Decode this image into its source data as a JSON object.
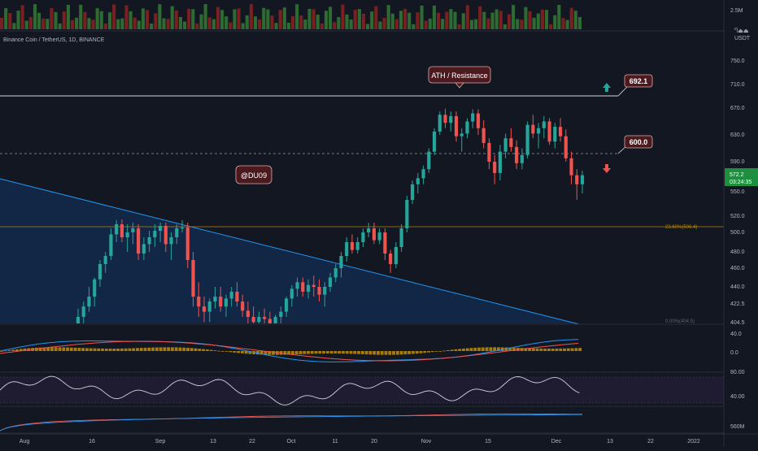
{
  "header": {
    "symbol_title": "Binance Coin / TetherUS, 1D, BINANCE",
    "currency": "USDT",
    "currency_extra": "Ⴄ⏏⏏"
  },
  "colors": {
    "background": "#131722",
    "up": "#26a69a",
    "down": "#ef5350",
    "trendline": "#2196f3",
    "fib": "#b8860b",
    "label_bg": "#4a1a1f",
    "last_price": "#1e8f3e",
    "rsi_band": "#2a1f3d"
  },
  "icons": [
    "arrow-up-icon",
    "arrow-down-icon"
  ],
  "annotations": {
    "ath_label": "ATH / Resistance",
    "author_label": "@DU09",
    "level_high": "692.1",
    "level_mid": "600.0",
    "fib_label": "23.60%(506.4)",
    "fib_label_low": "0.00%(404.5)"
  },
  "last_price": {
    "value": "572.2",
    "countdown": "03:24:35"
  },
  "volume_axis": {
    "label": "2.5M"
  },
  "price_axis": [
    "750.0",
    "710.0",
    "670.0",
    "630.0",
    "590.0",
    "550.0",
    "520.0",
    "500.0",
    "480.0",
    "460.0",
    "440.0",
    "422.5",
    "404.5"
  ],
  "macd_axis": [
    "40.0",
    "0.0"
  ],
  "rsi_axis": [
    "80.00",
    "40.00"
  ],
  "bottom_axis": [
    "560M"
  ],
  "time_axis": [
    "Aug",
    "16",
    "Sep",
    "13",
    "22",
    "Oct",
    "11",
    "20",
    "Nov",
    "15",
    "Dec",
    "13",
    "22",
    "2022"
  ],
  "chart_data": {
    "type": "candlestick",
    "title": "Binance Coin / TetherUS, 1D, BINANCE",
    "x": [
      "Aug",
      "16",
      "Sep",
      "13",
      "22",
      "Oct",
      "11",
      "20",
      "Nov",
      "15",
      "Dec",
      "13",
      "22",
      "2022"
    ],
    "y_unit": "USDT",
    "ylim": [
      400,
      770
    ],
    "horizontal_levels": [
      {
        "label": "692.1",
        "value": 692.1,
        "style": "solid"
      },
      {
        "label": "600.0",
        "value": 600.0,
        "style": "dashed"
      },
      {
        "label": "23.60%(506.4)",
        "value": 506.4,
        "style": "fib"
      }
    ],
    "annotations": [
      "ATH / Resistance",
      "@DU09"
    ],
    "ohlc": [
      [
        400,
        418,
        395,
        410
      ],
      [
        410,
        425,
        402,
        420
      ],
      [
        420,
        440,
        415,
        430
      ],
      [
        430,
        450,
        420,
        448
      ],
      [
        448,
        470,
        440,
        465
      ],
      [
        465,
        480,
        455,
        475
      ],
      [
        475,
        505,
        470,
        498
      ],
      [
        498,
        515,
        490,
        510
      ],
      [
        510,
        516,
        490,
        495
      ],
      [
        495,
        510,
        480,
        500
      ],
      [
        500,
        512,
        488,
        505
      ],
      [
        505,
        510,
        470,
        478
      ],
      [
        478,
        495,
        470,
        488
      ],
      [
        488,
        502,
        480,
        495
      ],
      [
        495,
        510,
        485,
        502
      ],
      [
        502,
        512,
        490,
        508
      ],
      [
        508,
        512,
        480,
        488
      ],
      [
        488,
        500,
        470,
        495
      ],
      [
        495,
        510,
        488,
        505
      ],
      [
        505,
        515,
        500,
        506
      ],
      [
        506,
        512,
        460,
        470
      ],
      [
        470,
        480,
        420,
        430
      ],
      [
        430,
        445,
        410,
        420
      ],
      [
        420,
        430,
        405,
        415
      ],
      [
        415,
        428,
        405,
        425
      ],
      [
        425,
        440,
        418,
        430
      ],
      [
        430,
        440,
        415,
        420
      ],
      [
        420,
        432,
        410,
        428
      ],
      [
        428,
        440,
        420,
        435
      ],
      [
        435,
        445,
        420,
        425
      ],
      [
        425,
        432,
        410,
        416
      ],
      [
        416,
        425,
        400,
        410
      ],
      [
        410,
        420,
        400,
        405
      ],
      [
        405,
        415,
        398,
        410
      ],
      [
        410,
        418,
        400,
        408
      ],
      [
        408,
        415,
        398,
        402
      ],
      [
        402,
        412,
        396,
        410
      ],
      [
        410,
        420,
        402,
        415
      ],
      [
        415,
        430,
        410,
        428
      ],
      [
        428,
        442,
        420,
        438
      ],
      [
        438,
        450,
        430,
        445
      ],
      [
        445,
        450,
        430,
        435
      ],
      [
        435,
        448,
        428,
        442
      ],
      [
        442,
        452,
        430,
        440
      ],
      [
        440,
        448,
        425,
        432
      ],
      [
        432,
        445,
        420,
        440
      ],
      [
        440,
        455,
        435,
        450
      ],
      [
        450,
        465,
        445,
        460
      ],
      [
        460,
        480,
        450,
        475
      ],
      [
        475,
        495,
        468,
        490
      ],
      [
        490,
        498,
        478,
        482
      ],
      [
        482,
        495,
        478,
        490
      ],
      [
        490,
        505,
        485,
        500
      ],
      [
        500,
        512,
        495,
        505
      ],
      [
        505,
        512,
        488,
        492
      ],
      [
        492,
        505,
        488,
        500
      ],
      [
        500,
        505,
        470,
        478
      ],
      [
        478,
        482,
        455,
        465
      ],
      [
        465,
        490,
        460,
        485
      ],
      [
        485,
        510,
        480,
        505
      ],
      [
        505,
        545,
        500,
        540
      ],
      [
        540,
        565,
        535,
        560
      ],
      [
        560,
        575,
        548,
        568
      ],
      [
        568,
        585,
        560,
        580
      ],
      [
        580,
        610,
        575,
        605
      ],
      [
        605,
        640,
        600,
        635
      ],
      [
        635,
        665,
        630,
        660
      ],
      [
        660,
        669,
        640,
        648
      ],
      [
        648,
        665,
        635,
        658
      ],
      [
        658,
        665,
        620,
        628
      ],
      [
        628,
        640,
        605,
        632
      ],
      [
        632,
        655,
        625,
        650
      ],
      [
        650,
        668,
        640,
        662
      ],
      [
        662,
        668,
        630,
        640
      ],
      [
        640,
        652,
        610,
        618
      ],
      [
        618,
        625,
        580,
        590
      ],
      [
        590,
        600,
        560,
        575
      ],
      [
        575,
        615,
        565,
        605
      ],
      [
        605,
        632,
        595,
        625
      ],
      [
        625,
        640,
        605,
        612
      ],
      [
        612,
        622,
        580,
        588
      ],
      [
        588,
        610,
        580,
        600
      ],
      [
        600,
        650,
        595,
        645
      ],
      [
        645,
        660,
        625,
        632
      ],
      [
        632,
        648,
        610,
        640
      ],
      [
        640,
        658,
        625,
        650
      ],
      [
        650,
        655,
        615,
        620
      ],
      [
        620,
        648,
        610,
        642
      ],
      [
        642,
        655,
        620,
        628
      ],
      [
        628,
        638,
        590,
        595
      ],
      [
        595,
        605,
        560,
        572
      ],
      [
        572,
        580,
        540,
        560
      ],
      [
        560,
        578,
        548,
        572
      ]
    ]
  }
}
